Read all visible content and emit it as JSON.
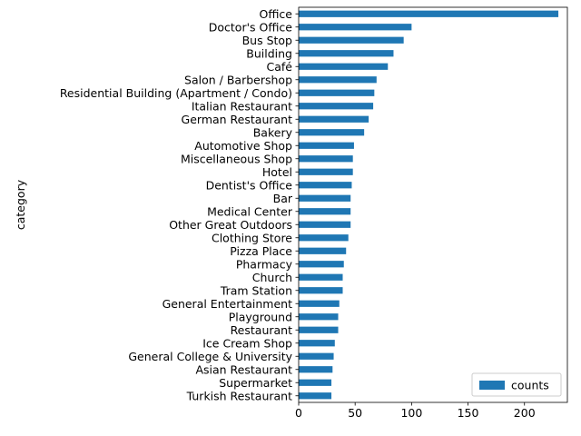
{
  "chart_data": {
    "type": "bar",
    "orientation": "horizontal",
    "ylabel": "category",
    "xlabel": "",
    "xlim": [
      0,
      238
    ],
    "x_ticks": [
      0,
      50,
      100,
      150,
      200
    ],
    "legend_position": "lower-right",
    "bar_color": "#1f77b4",
    "categories": [
      "Office",
      "Doctor's Office",
      "Bus Stop",
      "Building",
      "Café",
      "Salon / Barbershop",
      "Residential Building (Apartment / Condo)",
      "Italian Restaurant",
      "German Restaurant",
      "Bakery",
      "Automotive Shop",
      "Miscellaneous Shop",
      "Hotel",
      "Dentist's Office",
      "Bar",
      "Medical Center",
      "Other Great Outdoors",
      "Clothing Store",
      "Pizza Place",
      "Pharmacy",
      "Church",
      "Tram Station",
      "General Entertainment",
      "Playground",
      "Restaurant",
      "Ice Cream Shop",
      "General College & University",
      "Asian Restaurant",
      "Supermarket",
      "Turkish Restaurant"
    ],
    "series": [
      {
        "name": "counts",
        "values": [
          230,
          100,
          93,
          84,
          79,
          69,
          67,
          66,
          62,
          58,
          49,
          48,
          48,
          47,
          46,
          46,
          46,
          44,
          42,
          40,
          39,
          39,
          36,
          35,
          35,
          32,
          31,
          30,
          29,
          29
        ]
      }
    ]
  }
}
